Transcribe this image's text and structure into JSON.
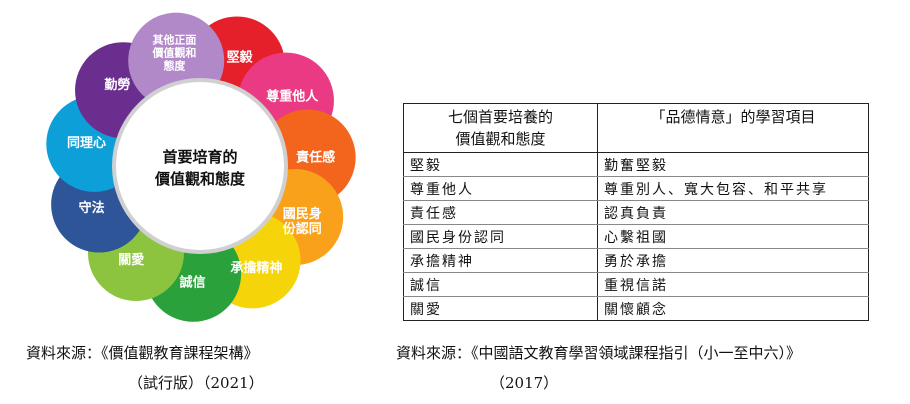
{
  "diagram": {
    "center": [
      "首要培育的",
      "價值觀和態度"
    ],
    "petals": [
      {
        "lines": [
          "堅毅"
        ],
        "color": "#e5202a"
      },
      {
        "lines": [
          "尊重他人"
        ],
        "color": "#ea3a83"
      },
      {
        "lines": [
          "責任感"
        ],
        "color": "#f3641c"
      },
      {
        "lines": [
          "國民身",
          "份認同"
        ],
        "color": "#f9a11b"
      },
      {
        "lines": [
          "承擔精神"
        ],
        "color": "#f5d40a"
      },
      {
        "lines": [
          "誠信"
        ],
        "color": "#2aa13b"
      },
      {
        "lines": [
          "關愛"
        ],
        "color": "#8cc43f"
      },
      {
        "lines": [
          "守法"
        ],
        "color": "#2e5597"
      },
      {
        "lines": [
          "同理心"
        ],
        "color": "#0d9fd8"
      },
      {
        "lines": [
          "勤勞"
        ],
        "color": "#6a2f8e"
      },
      {
        "lines": [
          "其他正面",
          "價值觀和",
          "態度"
        ],
        "color": "#b189c8"
      }
    ]
  },
  "table": {
    "header": [
      "七個首要培養的\n價值觀和態度",
      "「品德情意」的學習項目"
    ],
    "rows": [
      [
        "堅毅",
        "勤奮堅毅"
      ],
      [
        "尊重他人",
        "尊重別人、寬大包容、和平共享"
      ],
      [
        "責任感",
        "認真負責"
      ],
      [
        "國民身份認同",
        "心繫祖國"
      ],
      [
        "承擔精神",
        "勇於承擔"
      ],
      [
        "誠信",
        "重視信諾"
      ],
      [
        "關愛",
        "關懷顧念"
      ]
    ]
  },
  "captions": {
    "left_line1": "資料來源：《價值觀教育課程架構》",
    "left_line2": "（試行版）（2021）",
    "right_line1": "資料來源：《中國語文教育學習領域課程指引（小一至中六）》",
    "right_line2": "（2017）"
  }
}
